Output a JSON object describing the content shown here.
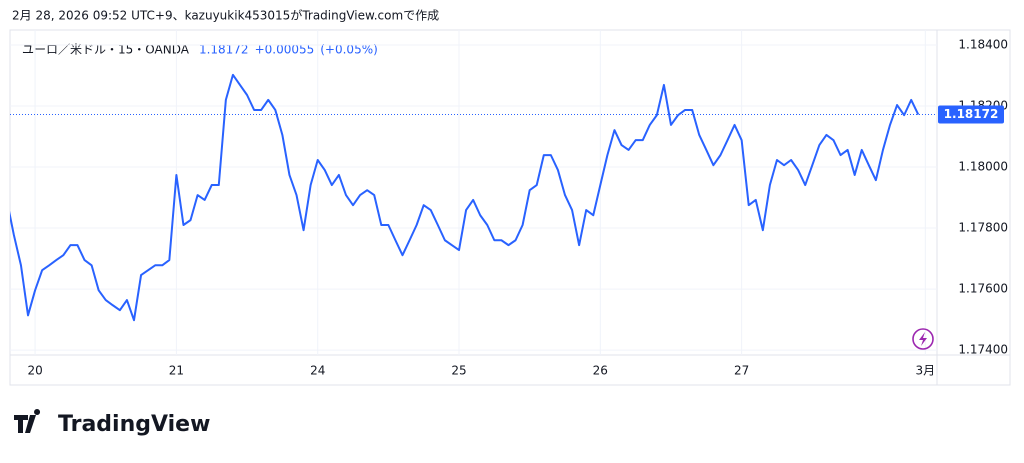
{
  "header": "2月 28, 2026 09:52 UTC+9、kazuyukik453015がTradingView.comで作成",
  "logo": "TradingView",
  "chart_data": {
    "type": "line",
    "symbol": "ユーロ／米ドル・15・OANDA",
    "last": "1.18172",
    "change": "+0.00055",
    "change_pct": "(+0.05%)",
    "price_label": "1.18172",
    "series": [
      {
        "name": "ユーロ／米ドル",
        "color": "#2962ff",
        "values": [
          1.17892,
          1.17777,
          1.17678,
          1.17514,
          1.17596,
          1.17662,
          1.17678,
          1.17695,
          1.17711,
          1.17744,
          1.17744,
          1.17695,
          1.17678,
          1.17596,
          1.17564,
          1.17547,
          1.17531,
          1.17564,
          1.17498,
          1.17646,
          1.17662,
          1.17678,
          1.17678,
          1.17695,
          1.17974,
          1.1781,
          1.17826,
          1.17908,
          1.17892,
          1.17941,
          1.17941,
          1.1822,
          1.18302,
          1.18269,
          1.18236,
          1.18187,
          1.18187,
          1.1822,
          1.18187,
          1.18105,
          1.17974,
          1.17908,
          1.17793,
          1.17941,
          1.18023,
          1.1799,
          1.17941,
          1.17974,
          1.17908,
          1.17875,
          1.17908,
          1.17924,
          1.17908,
          1.1781,
          1.1781,
          1.1776,
          1.17711,
          1.1776,
          1.1781,
          1.17875,
          1.17859,
          1.1781,
          1.1776,
          1.17744,
          1.17728,
          1.17859,
          1.17892,
          1.17842,
          1.1781,
          1.1776,
          1.1776,
          1.17744,
          1.1776,
          1.1781,
          1.17924,
          1.17941,
          1.18039,
          1.18039,
          1.1799,
          1.17908,
          1.17859,
          1.17744,
          1.17859,
          1.17842,
          1.17941,
          1.18039,
          1.18121,
          1.18072,
          1.18056,
          1.18088,
          1.18088,
          1.18138,
          1.1817,
          1.18269,
          1.18138,
          1.1817,
          1.18187,
          1.18187,
          1.18105,
          1.18056,
          1.18006,
          1.18039,
          1.18088,
          1.18138,
          1.18088,
          1.17875,
          1.17892,
          1.17793,
          1.17941,
          1.18023,
          1.18006,
          1.18023,
          1.1799,
          1.17941,
          1.18006,
          1.18072,
          1.18105,
          1.18088,
          1.18039,
          1.18056,
          1.17974,
          1.18056,
          1.18006,
          1.17957,
          1.18056,
          1.18138,
          1.18203,
          1.1817,
          1.1822,
          1.18172
        ]
      }
    ],
    "xlim": [
      0.45,
      131.65
    ],
    "xticks": [
      {
        "value": 4,
        "label": "20"
      },
      {
        "value": 24,
        "label": "21"
      },
      {
        "value": 44,
        "label": "24"
      },
      {
        "value": 64,
        "label": "25"
      },
      {
        "value": 84,
        "label": "26"
      },
      {
        "value": 104,
        "label": "27"
      },
      {
        "value": 130,
        "label": "3月"
      }
    ],
    "ylim": [
      1.17384,
      1.18449
    ],
    "yticks": [
      {
        "value": 1.174,
        "label": "1.17400"
      },
      {
        "value": 1.176,
        "label": "1.17600"
      },
      {
        "value": 1.178,
        "label": "1.17800"
      },
      {
        "value": 1.18,
        "label": "1.18000"
      },
      {
        "value": 1.182,
        "label": "1.18200"
      },
      {
        "value": 1.184,
        "label": "1.18400"
      }
    ],
    "grid": true
  }
}
